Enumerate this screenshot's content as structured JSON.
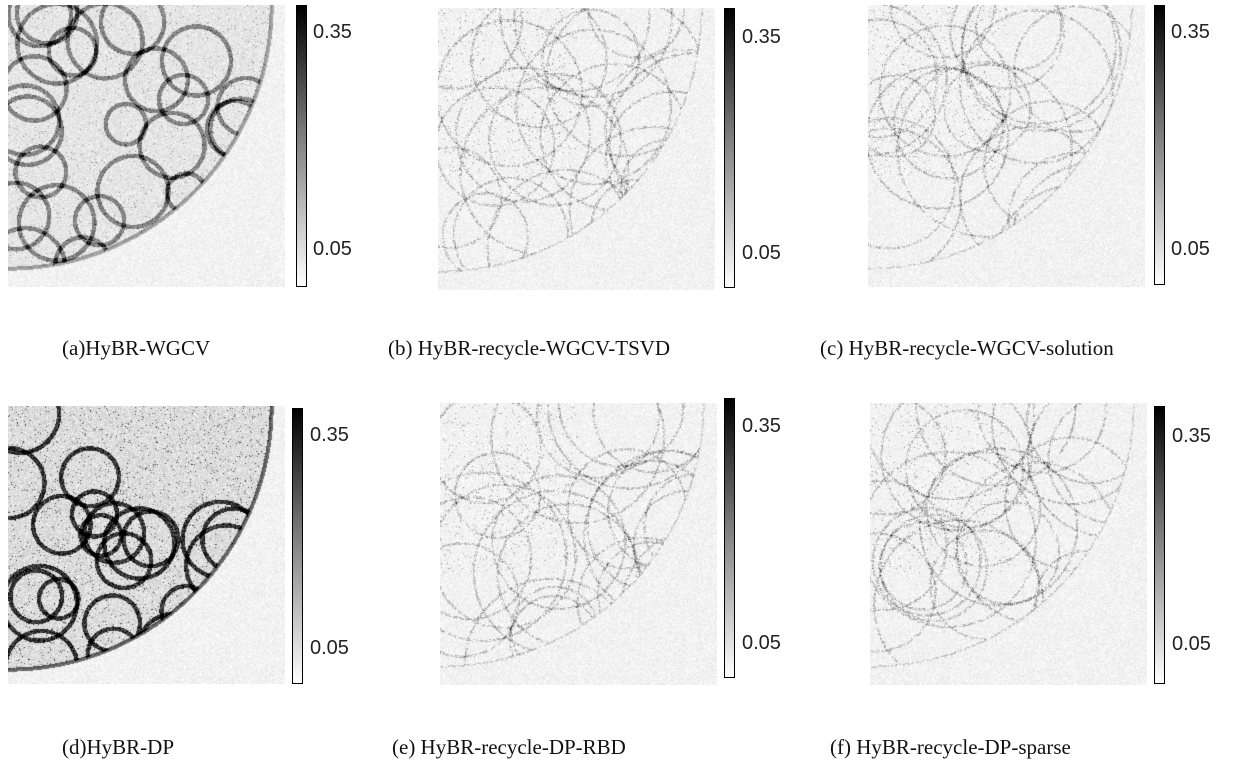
{
  "figure": {
    "panels": [
      {
        "id": "a",
        "caption": "(a)HyBR-WGCV",
        "tick_top": "0.35",
        "tick_bottom": "0.05",
        "pattern": "circle",
        "intensity": 0.55
      },
      {
        "id": "b",
        "caption": "(b) HyBR-recycle-WGCV-TSVD",
        "tick_top": "0.35",
        "tick_bottom": "0.05",
        "pattern": "noise",
        "intensity": 0.18
      },
      {
        "id": "c",
        "caption": "(c) HyBR-recycle-WGCV-solution",
        "tick_top": "0.35",
        "tick_bottom": "0.05",
        "pattern": "noise",
        "intensity": 0.18
      },
      {
        "id": "d",
        "caption": "(d)HyBR-DP",
        "tick_top": "0.35",
        "tick_bottom": "0.05",
        "pattern": "circle",
        "intensity": 0.95
      },
      {
        "id": "e",
        "caption": "(e) HyBR-recycle-DP-RBD",
        "tick_top": "0.35",
        "tick_bottom": "0.05",
        "pattern": "noise",
        "intensity": 0.18
      },
      {
        "id": "f",
        "caption": "(f) HyBR-recycle-DP-sparse",
        "tick_top": "0.35",
        "tick_bottom": "0.05",
        "pattern": "noise",
        "intensity": 0.18
      }
    ]
  }
}
